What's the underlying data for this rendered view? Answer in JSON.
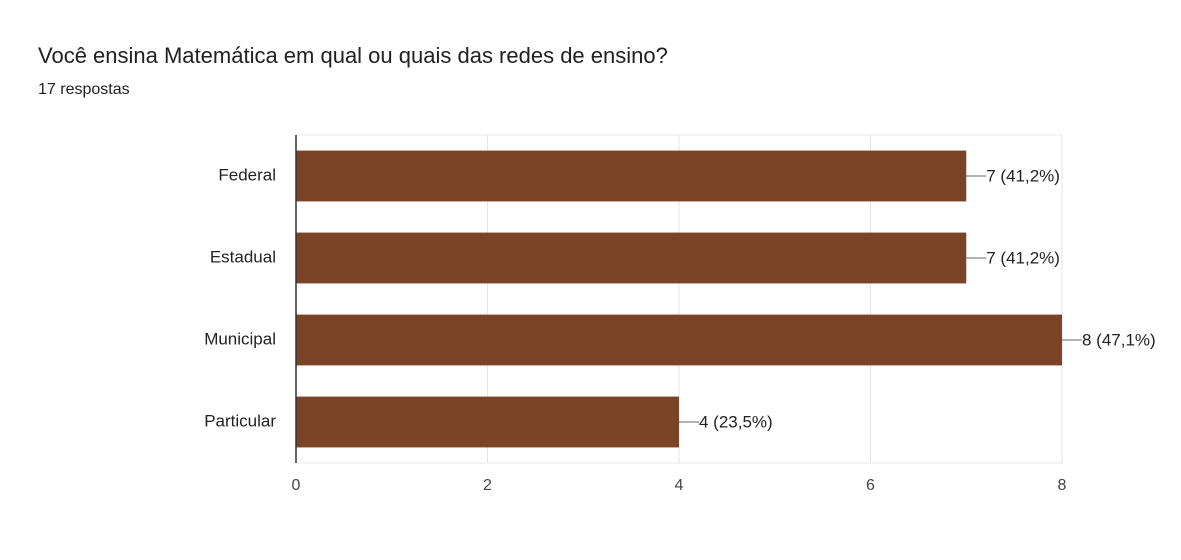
{
  "chart_data": {
    "type": "bar",
    "orientation": "horizontal",
    "title": "Você ensina Matemática em qual ou quais das redes de ensino?",
    "subtitle": "17 respostas",
    "categories": [
      "Federal",
      "Estadual",
      "Municipal",
      "Particular"
    ],
    "values": [
      7,
      7,
      8,
      4
    ],
    "value_labels": [
      "7 (41,2%)",
      "7 (41,2%)",
      "8 (47,1%)",
      "4 (23,5%)"
    ],
    "color": "#7b4427",
    "xlim": [
      0,
      8
    ],
    "xticks": [
      0,
      2,
      4,
      6,
      8
    ],
    "grid": true
  }
}
